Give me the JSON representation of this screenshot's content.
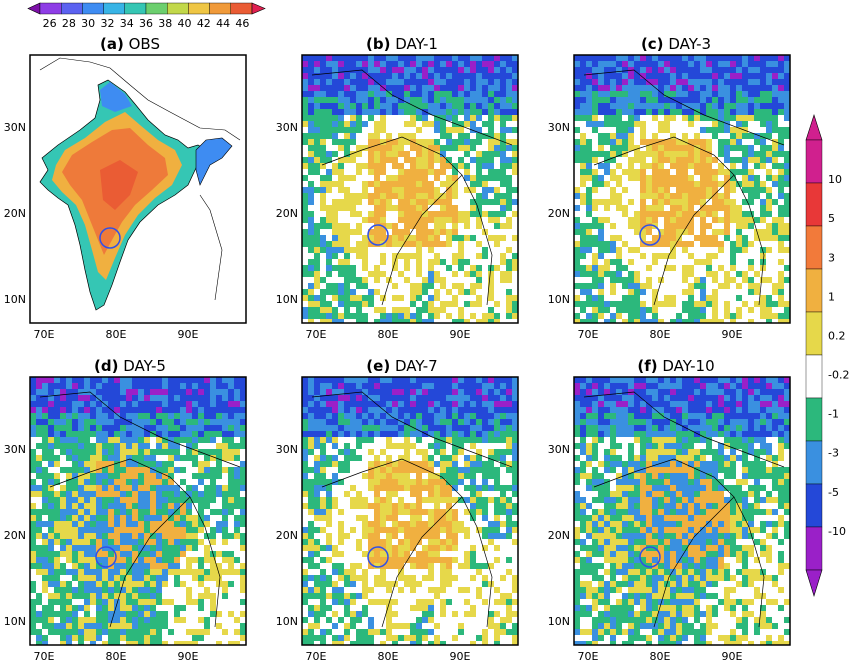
{
  "top_colorbar": {
    "labels": [
      "26",
      "28",
      "30",
      "32",
      "34",
      "36",
      "38",
      "40",
      "42",
      "44",
      "46"
    ],
    "colors": [
      "#7d10a8",
      "#8e3de6",
      "#5b62f0",
      "#3e8cf2",
      "#38b4e6",
      "#35c6b4",
      "#6ccf6e",
      "#c2d84a",
      "#efc644",
      "#f09a3a",
      "#ea5c34",
      "#e02050"
    ]
  },
  "right_colorbar": {
    "labels": [
      "10",
      "5",
      "3",
      "1",
      "0.2",
      "-0.2",
      "-1",
      "-3",
      "-5",
      "-10"
    ],
    "colors": [
      "#d0208e",
      "#e83838",
      "#f27a3a",
      "#f0b040",
      "#e6d84a",
      "#ffffff",
      "#2cb87c",
      "#3a90e0",
      "#2448d8",
      "#9a20c8"
    ]
  },
  "panels": [
    {
      "tag": "(a)",
      "name": "OBS"
    },
    {
      "tag": "(b)",
      "name": "DAY-1"
    },
    {
      "tag": "(c)",
      "name": "DAY-3"
    },
    {
      "tag": "(d)",
      "name": "DAY-5"
    },
    {
      "tag": "(e)",
      "name": "DAY-7"
    },
    {
      "tag": "(f)",
      "name": "DAY-10"
    }
  ],
  "axes": {
    "x_ticks": [
      "70E",
      "80E",
      "90E"
    ],
    "y_ticks": [
      "30N",
      "20N",
      "10N"
    ]
  },
  "colors": {
    "obs_hot": "#ee7a3a",
    "obs_warm": "#f0b040",
    "obs_cool": "#35c6b4",
    "obs_cold": "#3e8cf2",
    "diff_sea": "#2cb87c",
    "diff_pos": "#e6d84a",
    "diff_pos2": "#f0b040",
    "diff_neg": "#3a90e0",
    "diff_neg2": "#2448d8",
    "circle": "#3050e8"
  }
}
